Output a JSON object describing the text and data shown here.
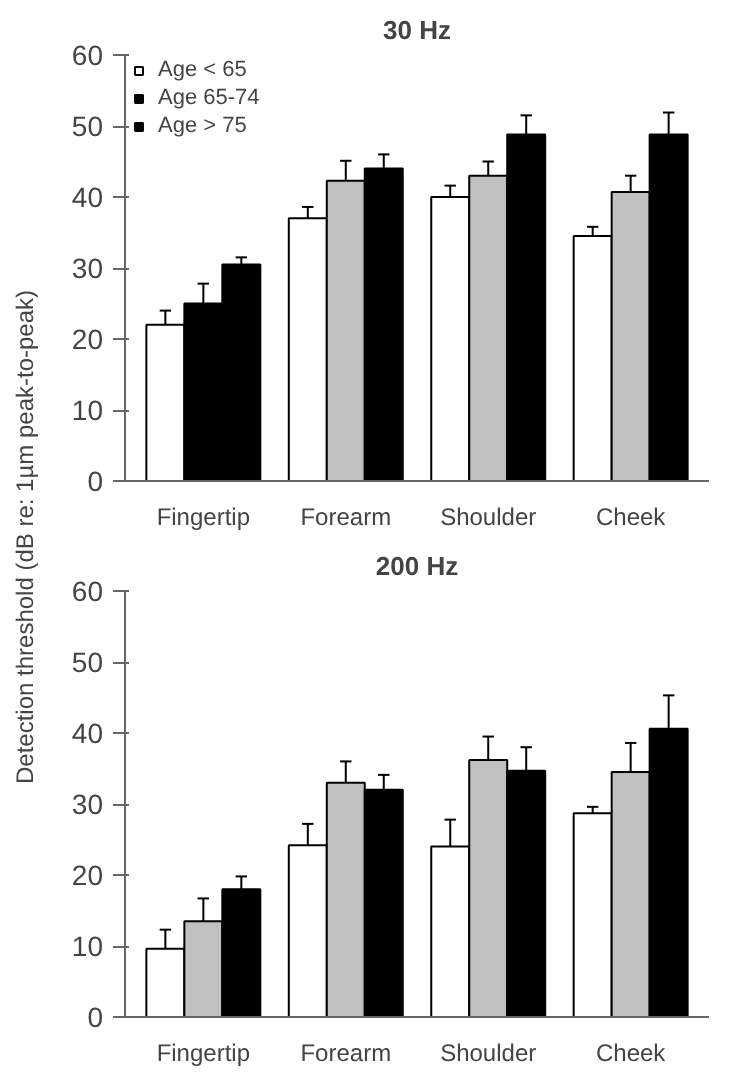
{
  "chart_data": [
    {
      "type": "bar",
      "title": "30 Hz",
      "ylabel": "Detection threshold (dB re: 1µm peak-to-peak)",
      "categories": [
        "Fingertip",
        "Forearm",
        "Shoulder",
        "Cheek"
      ],
      "ylim": [
        0,
        60
      ],
      "yticks": [
        0,
        10,
        20,
        30,
        40,
        50,
        60
      ],
      "grid": false,
      "legend": "top left",
      "series": [
        {
          "name": "Age < 65",
          "color": "#ffffff",
          "values": [
            22,
            37,
            40,
            34.5
          ],
          "errors": [
            [
              22,
              24
            ],
            [
              37,
              38.6
            ],
            [
              40,
              41.6
            ],
            [
              34.5,
              35.8
            ]
          ]
        },
        {
          "name": "Age 65-74",
          "color": "#000000",
          "colors": [
            "#000000",
            "#c0c0c0",
            "#c0c0c0",
            "#c0c0c0"
          ],
          "values": [
            25,
            42.3,
            43,
            40.7
          ],
          "errors": [
            [
              25,
              27.8
            ],
            [
              42.3,
              45.1
            ],
            [
              43,
              45
            ],
            [
              40.7,
              43
            ]
          ]
        },
        {
          "name": "Age > 75",
          "color": "#000000",
          "values": [
            30.5,
            44,
            48.8,
            48.8
          ],
          "errors": [
            [
              30.5,
              31.5
            ],
            [
              44,
              46
            ],
            [
              48.8,
              51.5
            ],
            [
              48.8,
              51.9
            ]
          ]
        }
      ]
    },
    {
      "type": "bar",
      "title": "200 Hz",
      "categories": [
        "Fingertip",
        "Forearm",
        "Shoulder",
        "Cheek"
      ],
      "ylim": [
        0,
        60
      ],
      "yticks": [
        0,
        10,
        20,
        30,
        40,
        50,
        60
      ],
      "grid": false,
      "legend": false,
      "series": [
        {
          "color": "#ffffff",
          "values": [
            9.6,
            24.2,
            24,
            28.7
          ],
          "errors": [
            [
              9.6,
              12.3
            ],
            [
              24.2,
              27.2
            ],
            [
              24,
              27.8
            ],
            [
              28.7,
              29.6
            ]
          ]
        },
        {
          "color": "#c0c0c0",
          "values": [
            13.5,
            33,
            36.2,
            34.5
          ],
          "errors": [
            [
              13.5,
              16.7
            ],
            [
              33,
              36
            ],
            [
              36.2,
              39.5
            ],
            [
              34.5,
              38.6
            ]
          ]
        },
        {
          "color": "#000000",
          "values": [
            18,
            32,
            34.7,
            40.6
          ],
          "errors": [
            [
              18,
              19.8
            ],
            [
              32,
              34.1
            ],
            [
              34.7,
              38
            ],
            [
              40.6,
              45.3
            ]
          ]
        }
      ]
    }
  ]
}
